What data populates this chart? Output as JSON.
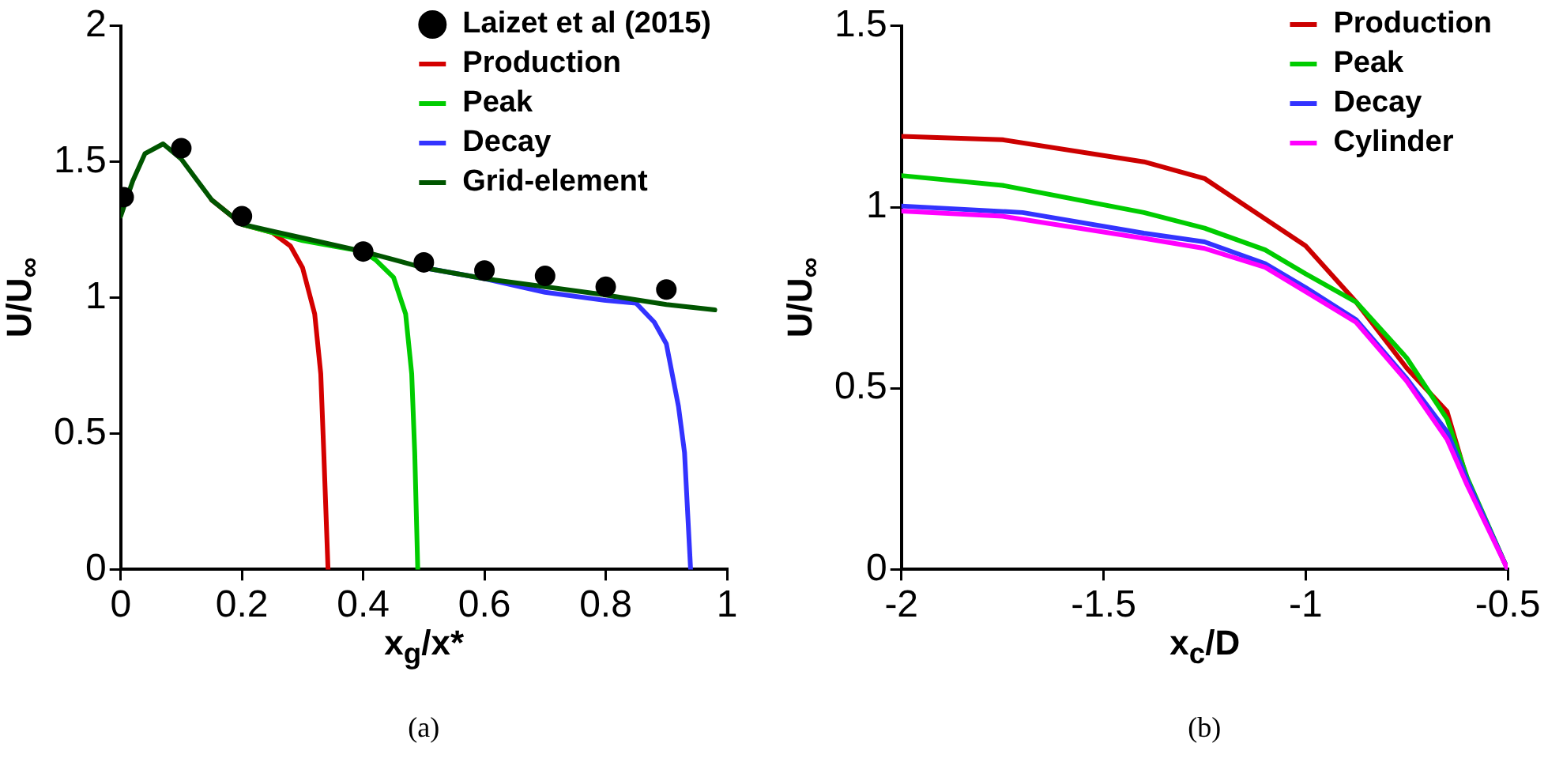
{
  "chart_data": [
    {
      "type": "line",
      "xlabel": "x$_{g}$/x*",
      "ylabel": "U/U$_{∞}$",
      "xlim": [
        0,
        1
      ],
      "ylim": [
        0,
        2
      ],
      "xticks": [
        0,
        0.2,
        0.4,
        0.6,
        0.8,
        1
      ],
      "yticks": [
        0,
        0.5,
        1,
        1.5,
        2
      ],
      "grid": false,
      "legend": "top right",
      "annotations": [
        "(a)"
      ],
      "series": [
        {
          "name": "Laizet et al (2015)",
          "type": "scatter",
          "marker": "circle",
          "color": "#000000",
          "x": [
            0.005,
            0.1,
            0.2,
            0.4,
            0.5,
            0.6,
            0.7,
            0.8,
            0.9
          ],
          "values": [
            1.37,
            1.55,
            1.3,
            1.17,
            1.13,
            1.1,
            1.08,
            1.04,
            1.03
          ]
        },
        {
          "name": "Production",
          "type": "line",
          "color": "#d40000",
          "x": [
            0.15,
            0.2,
            0.25,
            0.28,
            0.3,
            0.32,
            0.33,
            0.335,
            0.342
          ],
          "values": [
            1.36,
            1.27,
            1.24,
            1.19,
            1.11,
            0.94,
            0.72,
            0.43,
            0
          ]
        },
        {
          "name": "Peak",
          "type": "line",
          "color": "#00cc00",
          "x": [
            0.2,
            0.25,
            0.3,
            0.35,
            0.4,
            0.42,
            0.45,
            0.47,
            0.48,
            0.485,
            0.49
          ],
          "values": [
            1.27,
            1.24,
            1.21,
            1.19,
            1.17,
            1.14,
            1.075,
            0.94,
            0.72,
            0.43,
            0
          ]
        },
        {
          "name": "Decay",
          "type": "line",
          "color": "#3333ff",
          "x": [
            0.5,
            0.6,
            0.7,
            0.8,
            0.85,
            0.88,
            0.9,
            0.92,
            0.93,
            0.94
          ],
          "values": [
            1.11,
            1.07,
            1.02,
            0.99,
            0.98,
            0.91,
            0.83,
            0.6,
            0.43,
            0
          ]
        },
        {
          "name": "Grid-element",
          "type": "line",
          "color": "#005500",
          "x": [
            0,
            0.02,
            0.04,
            0.07,
            0.1,
            0.15,
            0.2,
            0.25,
            0.3,
            0.4,
            0.5,
            0.6,
            0.7,
            0.8,
            0.9,
            0.98
          ],
          "values": [
            1.3,
            1.43,
            1.53,
            1.566,
            1.51,
            1.36,
            1.27,
            1.245,
            1.22,
            1.17,
            1.11,
            1.07,
            1.04,
            1.01,
            0.975,
            0.955
          ]
        }
      ]
    },
    {
      "type": "line",
      "xlabel": "x$_{c}$/D",
      "ylabel": "U/U$_{∞}$",
      "xlim": [
        -2,
        -0.5
      ],
      "ylim": [
        0,
        1.5
      ],
      "xticks": [
        -2,
        -1.5,
        -1,
        -0.5
      ],
      "yticks": [
        0,
        0.5,
        1,
        1.5
      ],
      "grid": false,
      "legend": "top right",
      "annotations": [
        "(b)"
      ],
      "series": [
        {
          "name": "Production",
          "type": "line",
          "color": "#cc0000",
          "x": [
            -2,
            -1.75,
            -1.4,
            -1.25,
            -1,
            -0.875,
            -0.75,
            -0.65,
            -0.6,
            -0.5
          ],
          "values": [
            1.195,
            1.186,
            1.125,
            1.079,
            0.893,
            0.738,
            0.556,
            0.436,
            0.246,
            0
          ]
        },
        {
          "name": "Peak",
          "type": "line",
          "color": "#00cc00",
          "x": [
            -2,
            -1.75,
            -1.4,
            -1.25,
            -1.1,
            -1,
            -0.875,
            -0.75,
            -0.65,
            -0.6,
            -0.5
          ],
          "values": [
            1.087,
            1.06,
            0.985,
            0.942,
            0.882,
            0.816,
            0.738,
            0.584,
            0.415,
            0.253,
            0
          ]
        },
        {
          "name": "Decay",
          "type": "line",
          "color": "#3333ff",
          "x": [
            -2,
            -1.7,
            -1.4,
            -1.25,
            -1.1,
            -1,
            -0.875,
            -0.75,
            -0.65,
            -0.6,
            -0.5
          ],
          "values": [
            1.003,
            0.985,
            0.928,
            0.904,
            0.844,
            0.778,
            0.689,
            0.527,
            0.38,
            0.246,
            0
          ]
        },
        {
          "name": "Cylinder",
          "type": "line",
          "color": "#ff00ff",
          "x": [
            -2,
            -1.75,
            -1.4,
            -1.25,
            -1.1,
            -1,
            -0.875,
            -0.75,
            -0.65,
            -0.6,
            -0.5
          ],
          "values": [
            0.989,
            0.975,
            0.914,
            0.886,
            0.834,
            0.767,
            0.682,
            0.52,
            0.359,
            0.232,
            0
          ]
        }
      ]
    }
  ]
}
